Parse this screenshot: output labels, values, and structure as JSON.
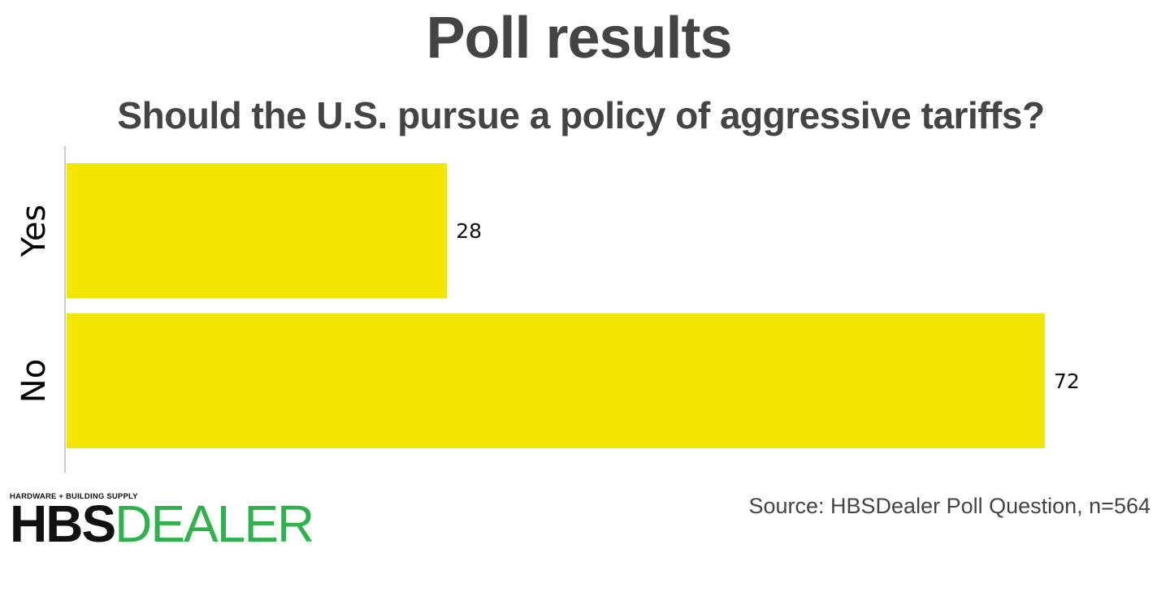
{
  "chart_data": {
    "type": "bar",
    "orientation": "horizontal",
    "title": "Poll results",
    "subtitle": "Should the U.S. pursue a policy of aggressive tariffs?",
    "categories": [
      "Yes",
      "No"
    ],
    "values": [
      28,
      72
    ],
    "data_labels": [
      "28",
      "72"
    ],
    "xlim": [
      0,
      72
    ],
    "grid": false,
    "bar_color": "#f2e500",
    "axis_color": "#cccccc"
  },
  "source": "Source: HBSDealer Poll Question, n=564",
  "logo": {
    "tagline": "HARDWARE + BUILDING SUPPLY",
    "part_a": "HBS",
    "part_b": "DEALER",
    "color_a": "#111111",
    "color_b": "#2fb24c"
  },
  "colors": {
    "title": "#444444",
    "background": "#ffffff"
  }
}
